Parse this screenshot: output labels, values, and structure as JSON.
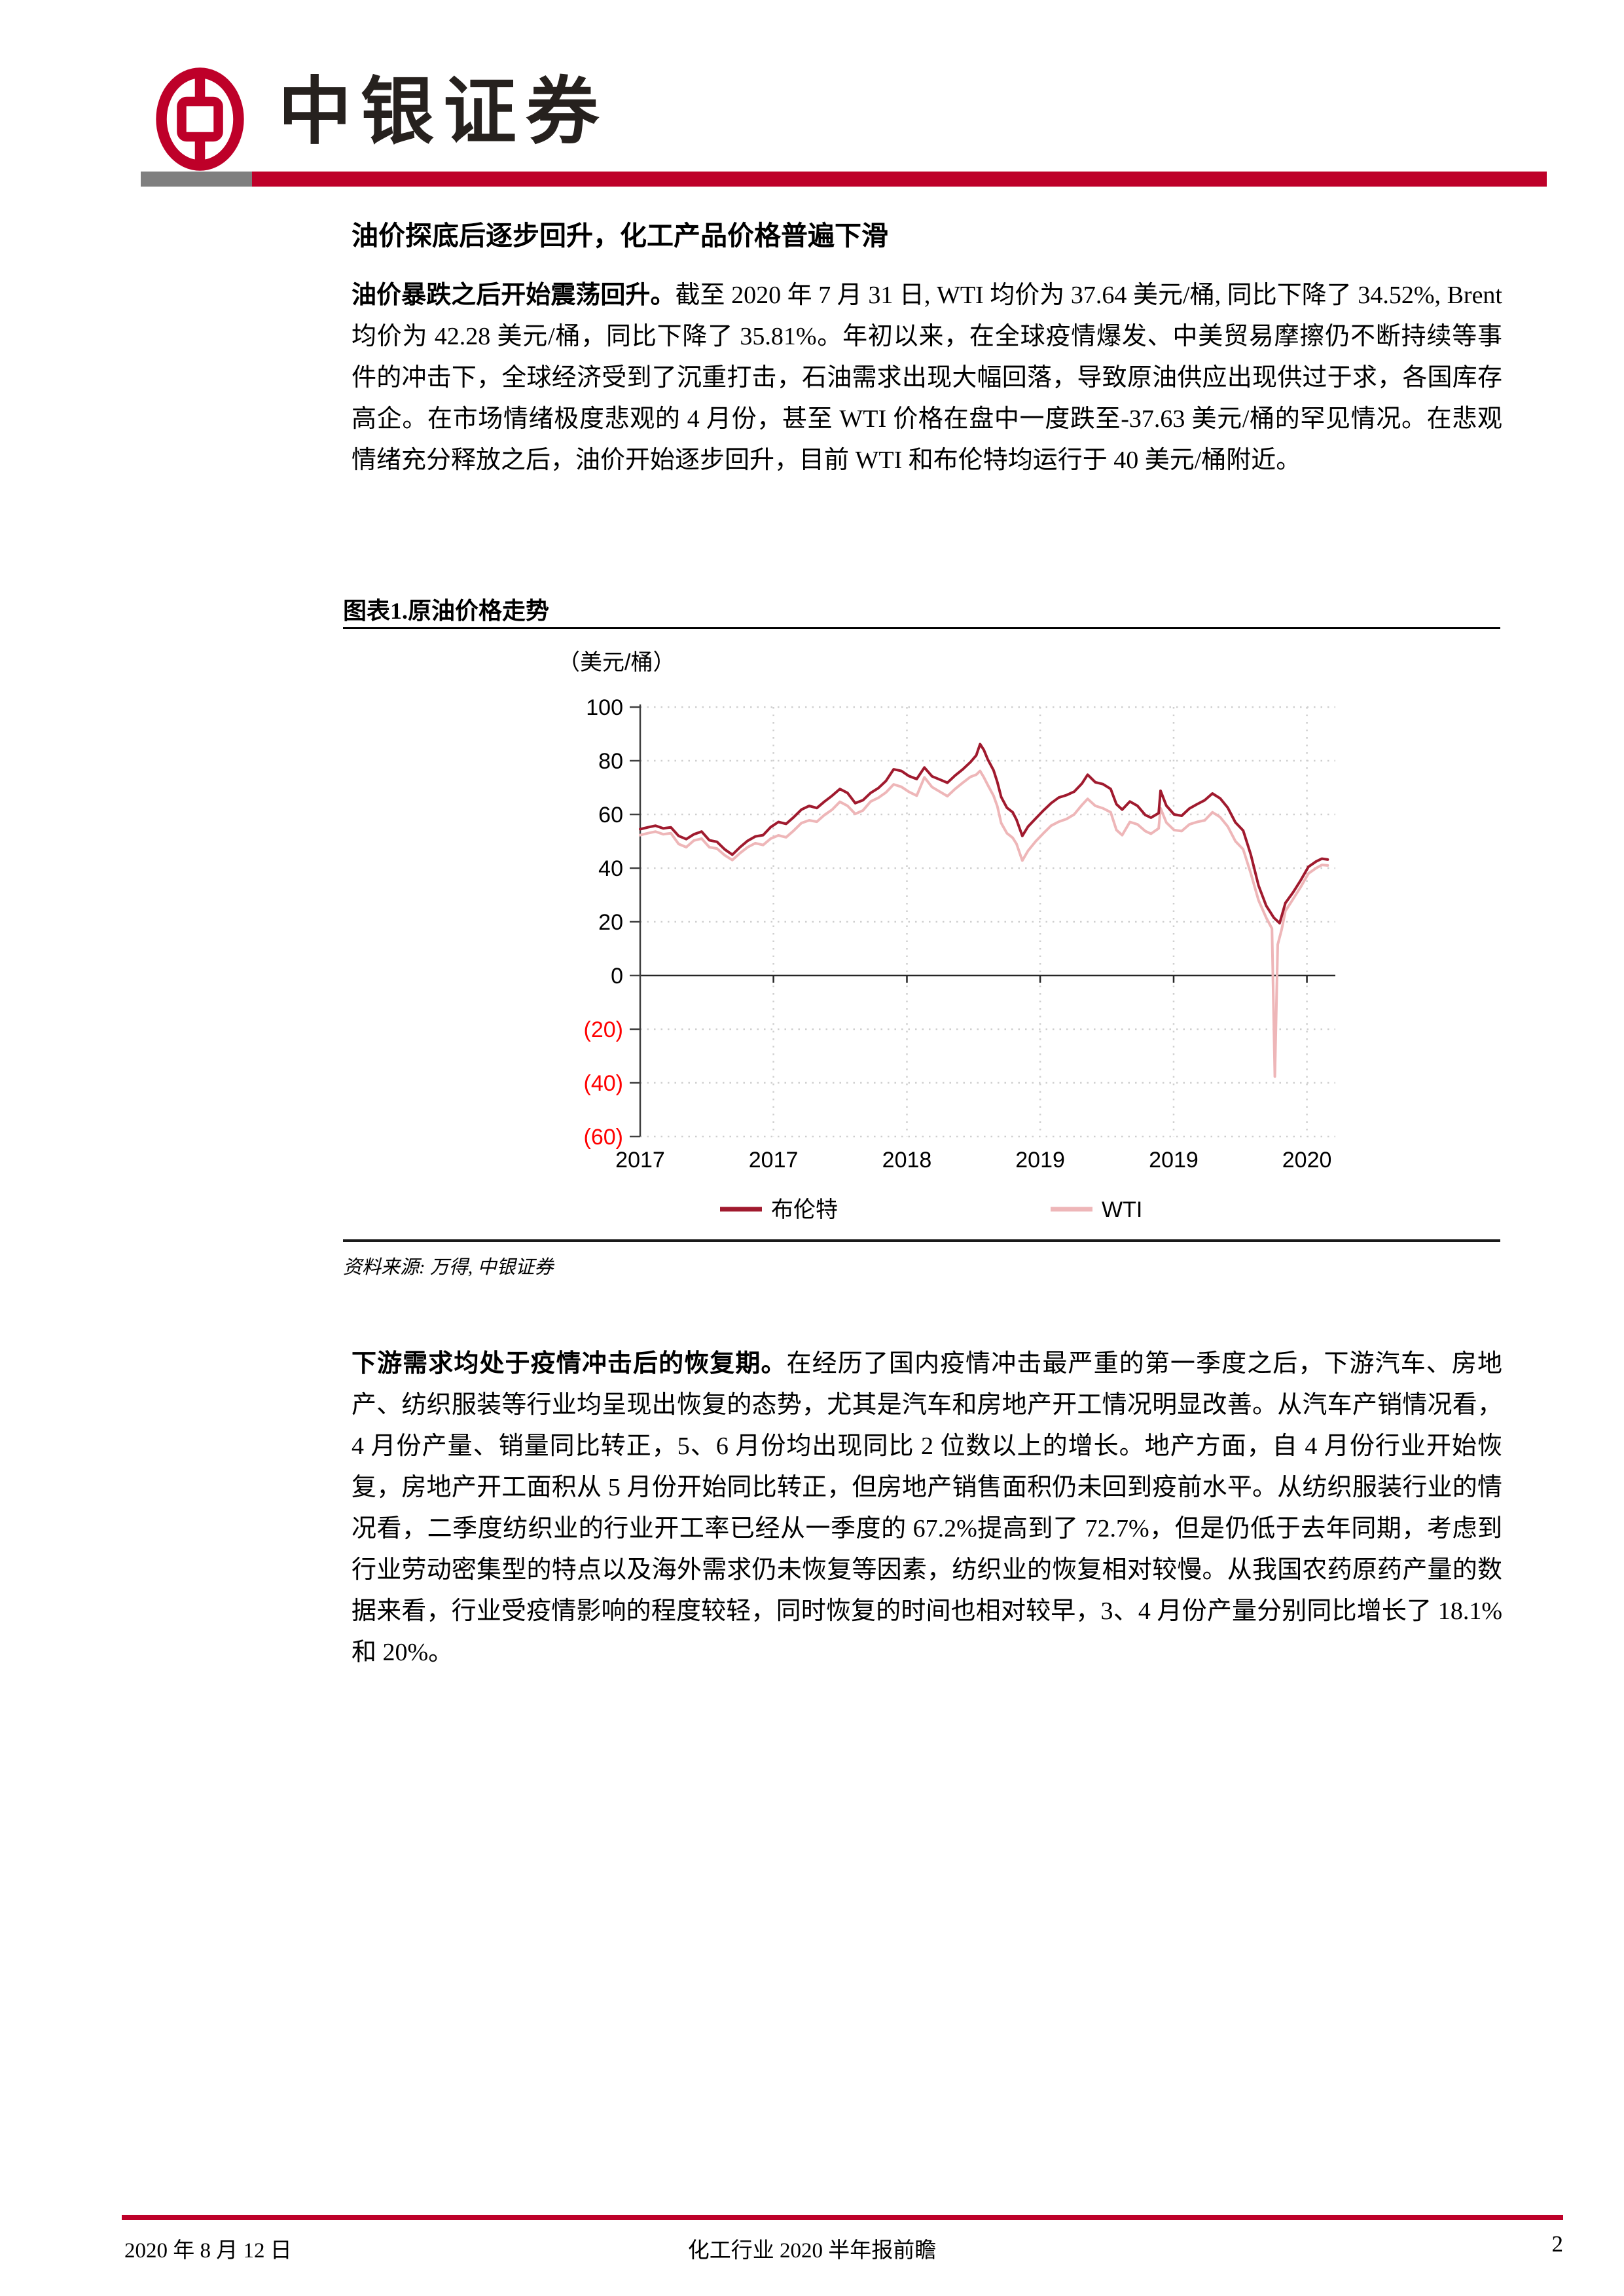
{
  "header": {
    "brand_name": "中银证券"
  },
  "article": {
    "section_title": "油价探底后逐步回升，化工产品价格普遍下滑",
    "para1_lead": "油价暴跌之后开始震荡回升。",
    "para1_rest": "截至 2020 年 7 月 31 日, WTI 均价为 37.64 美元/桶, 同比下降了 34.52%, Brent 均价为 42.28 美元/桶，同比下降了 35.81%。年初以来，在全球疫情爆发、中美贸易摩擦仍不断持续等事件的冲击下，全球经济受到了沉重打击，石油需求出现大幅回落，导致原油供应出现供过于求，各国库存高企。在市场情绪极度悲观的 4 月份，甚至 WTI 价格在盘中一度跌至-37.63 美元/桶的罕见情况。在悲观情绪充分释放之后，油价开始逐步回升，目前 WTI 和布伦特均运行于 40 美元/桶附近。",
    "para2_lead": "下游需求均处于疫情冲击后的恢复期。",
    "para2_rest": "在经历了国内疫情冲击最严重的第一季度之后，下游汽车、房地产、纺织服装等行业均呈现出恢复的态势，尤其是汽车和房地产开工情况明显改善。从汽车产销情况看，4 月份产量、销量同比转正，5、6 月份均出现同比 2 位数以上的增长。地产方面，自 4 月份行业开始恢复，房地产开工面积从 5 月份开始同比转正，但房地产销售面积仍未回到疫前水平。从纺织服装行业的情况看，二季度纺织业的行业开工率已经从一季度的 67.2%提高到了 72.7%，但是仍低于去年同期，考虑到行业劳动密集型的特点以及海外需求仍未恢复等因素，纺织业的恢复相对较慢。从我国农药原药产量的数据来看，行业受疫情影响的程度较轻，同时恢复的时间也相对较早，3、4 月份产量分别同比增长了 18.1%和 20%。"
  },
  "figure": {
    "title": "图表1.原油价格走势",
    "source": "资料来源: 万得, 中银证券"
  },
  "chart_data": {
    "type": "line",
    "unit_label": "（美元/桶）",
    "ylim": [
      -60,
      100
    ],
    "ytick_values": [
      100,
      80,
      60,
      40,
      20,
      0,
      -20,
      -40,
      -60
    ],
    "ytick_labels": [
      "100",
      "80",
      "60",
      "40",
      "20",
      "0",
      "(20)",
      "(40)",
      "(60)"
    ],
    "negative_tick_color": "#ff0000",
    "tick_color": "#000000",
    "grid_color": "#cfcfcf",
    "axis_color": "#404040",
    "xlim": [
      2017.0,
      2020.62
    ],
    "xtick_values": [
      2017.0,
      2017.694,
      2018.389,
      2019.083,
      2019.778,
      2020.472
    ],
    "xtick_labels": [
      "2017",
      "2017",
      "2018",
      "2019",
      "2019",
      "2020"
    ],
    "legend_position": "bottom",
    "grid": true,
    "series": [
      {
        "name": "布伦特",
        "color": "#a01a2e",
        "points": [
          [
            2017.0,
            54.5
          ],
          [
            2017.04,
            55.2
          ],
          [
            2017.08,
            55.8
          ],
          [
            2017.12,
            54.8
          ],
          [
            2017.16,
            55.2
          ],
          [
            2017.2,
            52.0
          ],
          [
            2017.24,
            50.8
          ],
          [
            2017.28,
            52.6
          ],
          [
            2017.32,
            53.6
          ],
          [
            2017.36,
            50.4
          ],
          [
            2017.4,
            49.8
          ],
          [
            2017.44,
            47.0
          ],
          [
            2017.48,
            45.0
          ],
          [
            2017.52,
            47.8
          ],
          [
            2017.56,
            50.2
          ],
          [
            2017.6,
            51.8
          ],
          [
            2017.64,
            52.3
          ],
          [
            2017.68,
            55.3
          ],
          [
            2017.72,
            57.2
          ],
          [
            2017.76,
            56.5
          ],
          [
            2017.8,
            59.0
          ],
          [
            2017.84,
            61.8
          ],
          [
            2017.88,
            63.2
          ],
          [
            2017.92,
            62.4
          ],
          [
            2017.96,
            64.8
          ],
          [
            2018.0,
            67.0
          ],
          [
            2018.04,
            69.5
          ],
          [
            2018.08,
            68.0
          ],
          [
            2018.12,
            64.2
          ],
          [
            2018.16,
            65.3
          ],
          [
            2018.2,
            68.0
          ],
          [
            2018.24,
            69.8
          ],
          [
            2018.28,
            72.5
          ],
          [
            2018.32,
            76.8
          ],
          [
            2018.36,
            76.2
          ],
          [
            2018.4,
            74.3
          ],
          [
            2018.44,
            73.2
          ],
          [
            2018.48,
            77.5
          ],
          [
            2018.52,
            74.2
          ],
          [
            2018.56,
            73.0
          ],
          [
            2018.6,
            71.8
          ],
          [
            2018.64,
            74.5
          ],
          [
            2018.68,
            76.8
          ],
          [
            2018.72,
            79.5
          ],
          [
            2018.75,
            82.0
          ],
          [
            2018.77,
            86.2
          ],
          [
            2018.79,
            84.0
          ],
          [
            2018.81,
            80.5
          ],
          [
            2018.84,
            76.5
          ],
          [
            2018.86,
            72.0
          ],
          [
            2018.88,
            66.5
          ],
          [
            2018.91,
            62.5
          ],
          [
            2018.94,
            60.8
          ],
          [
            2018.96,
            58.0
          ],
          [
            2018.99,
            52.0
          ],
          [
            2019.02,
            55.5
          ],
          [
            2019.06,
            58.5
          ],
          [
            2019.1,
            61.5
          ],
          [
            2019.14,
            64.2
          ],
          [
            2019.18,
            66.3
          ],
          [
            2019.22,
            67.2
          ],
          [
            2019.26,
            68.5
          ],
          [
            2019.3,
            71.5
          ],
          [
            2019.33,
            74.8
          ],
          [
            2019.37,
            72.0
          ],
          [
            2019.41,
            71.3
          ],
          [
            2019.45,
            69.5
          ],
          [
            2019.48,
            63.8
          ],
          [
            2019.51,
            61.8
          ],
          [
            2019.55,
            64.8
          ],
          [
            2019.59,
            63.2
          ],
          [
            2019.63,
            59.8
          ],
          [
            2019.66,
            58.8
          ],
          [
            2019.7,
            60.5
          ],
          [
            2019.71,
            68.8
          ],
          [
            2019.74,
            63.3
          ],
          [
            2019.78,
            60.0
          ],
          [
            2019.82,
            59.5
          ],
          [
            2019.86,
            62.2
          ],
          [
            2019.9,
            63.8
          ],
          [
            2019.94,
            65.3
          ],
          [
            2019.98,
            67.8
          ],
          [
            2020.02,
            66.0
          ],
          [
            2020.06,
            62.5
          ],
          [
            2020.1,
            57.0
          ],
          [
            2020.14,
            54.0
          ],
          [
            2020.18,
            45.0
          ],
          [
            2020.22,
            33.5
          ],
          [
            2020.26,
            26.0
          ],
          [
            2020.3,
            21.5
          ],
          [
            2020.33,
            19.5
          ],
          [
            2020.36,
            27.0
          ],
          [
            2020.4,
            31.0
          ],
          [
            2020.44,
            35.5
          ],
          [
            2020.48,
            40.5
          ],
          [
            2020.52,
            42.5
          ],
          [
            2020.55,
            43.5
          ],
          [
            2020.58,
            43.2
          ]
        ]
      },
      {
        "name": "WTI",
        "color": "#eeb6b8",
        "points": [
          [
            2017.0,
            52.3
          ],
          [
            2017.04,
            53.0
          ],
          [
            2017.08,
            53.6
          ],
          [
            2017.12,
            52.6
          ],
          [
            2017.16,
            53.0
          ],
          [
            2017.2,
            49.0
          ],
          [
            2017.24,
            47.8
          ],
          [
            2017.28,
            50.3
          ],
          [
            2017.32,
            51.0
          ],
          [
            2017.36,
            47.8
          ],
          [
            2017.4,
            47.3
          ],
          [
            2017.44,
            44.8
          ],
          [
            2017.48,
            43.0
          ],
          [
            2017.52,
            45.6
          ],
          [
            2017.56,
            47.8
          ],
          [
            2017.6,
            49.3
          ],
          [
            2017.64,
            48.6
          ],
          [
            2017.68,
            51.0
          ],
          [
            2017.72,
            52.2
          ],
          [
            2017.76,
            51.5
          ],
          [
            2017.8,
            54.0
          ],
          [
            2017.84,
            56.8
          ],
          [
            2017.88,
            57.8
          ],
          [
            2017.92,
            57.3
          ],
          [
            2017.96,
            59.8
          ],
          [
            2018.0,
            61.8
          ],
          [
            2018.04,
            64.7
          ],
          [
            2018.08,
            63.2
          ],
          [
            2018.12,
            60.2
          ],
          [
            2018.16,
            61.5
          ],
          [
            2018.2,
            64.8
          ],
          [
            2018.24,
            66.2
          ],
          [
            2018.28,
            68.2
          ],
          [
            2018.32,
            71.2
          ],
          [
            2018.36,
            70.3
          ],
          [
            2018.4,
            68.4
          ],
          [
            2018.44,
            67.0
          ],
          [
            2018.48,
            73.8
          ],
          [
            2018.52,
            70.2
          ],
          [
            2018.56,
            68.5
          ],
          [
            2018.6,
            66.8
          ],
          [
            2018.64,
            69.5
          ],
          [
            2018.68,
            71.8
          ],
          [
            2018.72,
            74.0
          ],
          [
            2018.75,
            74.8
          ],
          [
            2018.77,
            76.2
          ],
          [
            2018.79,
            73.8
          ],
          [
            2018.81,
            71.0
          ],
          [
            2018.84,
            67.0
          ],
          [
            2018.86,
            63.0
          ],
          [
            2018.88,
            56.8
          ],
          [
            2018.91,
            53.0
          ],
          [
            2018.94,
            51.3
          ],
          [
            2018.96,
            49.0
          ],
          [
            2018.99,
            42.8
          ],
          [
            2019.02,
            46.5
          ],
          [
            2019.06,
            50.0
          ],
          [
            2019.1,
            53.0
          ],
          [
            2019.14,
            55.8
          ],
          [
            2019.18,
            57.3
          ],
          [
            2019.22,
            58.3
          ],
          [
            2019.26,
            60.0
          ],
          [
            2019.3,
            63.5
          ],
          [
            2019.33,
            65.8
          ],
          [
            2019.37,
            63.2
          ],
          [
            2019.41,
            62.3
          ],
          [
            2019.45,
            60.8
          ],
          [
            2019.48,
            54.2
          ],
          [
            2019.51,
            52.3
          ],
          [
            2019.55,
            57.2
          ],
          [
            2019.59,
            56.3
          ],
          [
            2019.63,
            53.8
          ],
          [
            2019.66,
            52.8
          ],
          [
            2019.7,
            54.8
          ],
          [
            2019.71,
            62.3
          ],
          [
            2019.74,
            57.0
          ],
          [
            2019.78,
            54.2
          ],
          [
            2019.82,
            53.8
          ],
          [
            2019.86,
            56.3
          ],
          [
            2019.9,
            57.2
          ],
          [
            2019.94,
            57.8
          ],
          [
            2019.98,
            60.8
          ],
          [
            2020.02,
            59.0
          ],
          [
            2020.06,
            55.5
          ],
          [
            2020.1,
            50.0
          ],
          [
            2020.14,
            47.0
          ],
          [
            2020.18,
            38.0
          ],
          [
            2020.22,
            28.0
          ],
          [
            2020.26,
            21.5
          ],
          [
            2020.29,
            17.5
          ],
          [
            2020.305,
            -37.63
          ],
          [
            2020.32,
            11.5
          ],
          [
            2020.34,
            17.0
          ],
          [
            2020.36,
            24.0
          ],
          [
            2020.4,
            28.5
          ],
          [
            2020.44,
            33.0
          ],
          [
            2020.48,
            38.0
          ],
          [
            2020.52,
            40.0
          ],
          [
            2020.55,
            41.2
          ],
          [
            2020.58,
            41.0
          ]
        ]
      }
    ]
  },
  "footer": {
    "date": "2020 年 8 月 12 日",
    "doc_title": "化工行业 2020 半年报前瞻",
    "page_number": "2"
  }
}
